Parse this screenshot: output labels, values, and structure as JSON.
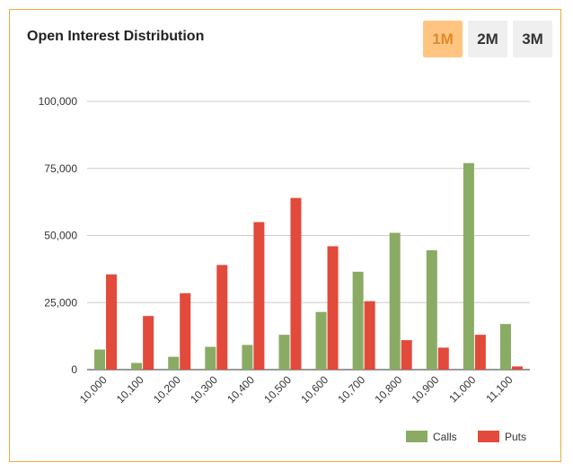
{
  "header": {
    "title": "Open Interest Distribution",
    "ranges": [
      {
        "label": "1M",
        "active": true
      },
      {
        "label": "2M",
        "active": false
      },
      {
        "label": "3M",
        "active": false
      }
    ]
  },
  "colors": {
    "calls": "#8aab64",
    "puts": "#e24a3b",
    "accent": "#ffc580",
    "border": "#f0a840"
  },
  "chart_data": {
    "type": "bar",
    "categories": [
      "10,000",
      "10,100",
      "10,200",
      "10,300",
      "10,400",
      "10,500",
      "10,600",
      "10,700",
      "10,800",
      "10,900",
      "11,000",
      "11,100"
    ],
    "series": [
      {
        "name": "Calls",
        "values": [
          7500,
          2500,
          4800,
          8500,
          9200,
          13000,
          21500,
          36500,
          51000,
          44500,
          77000,
          17000
        ]
      },
      {
        "name": "Puts",
        "values": [
          35500,
          20000,
          28500,
          39000,
          55000,
          64000,
          46000,
          25500,
          11000,
          8200,
          13000,
          1200
        ]
      }
    ],
    "yticks": [
      "0",
      "25,000",
      "50,000",
      "75,000",
      "100,000"
    ],
    "ylim": [
      0,
      100000
    ],
    "grid": true,
    "legend_position": "bottom-right"
  }
}
